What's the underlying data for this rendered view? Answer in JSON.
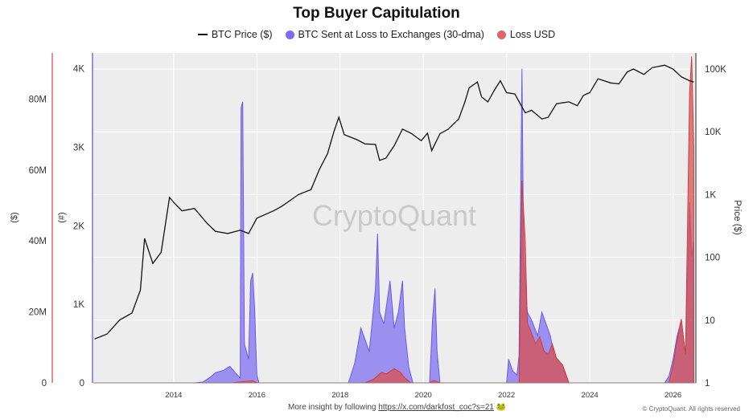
{
  "chart_data": {
    "type": "area",
    "title": "Top Buyer Capitulation",
    "legend": [
      {
        "label": "BTC Price ($)",
        "color": "#111111",
        "marker": "line"
      },
      {
        "label": "BTC Sent at Loss to Exchanges (30-dma)",
        "color": "#7b6cf0",
        "marker": "dot"
      },
      {
        "label": "Loss USD",
        "color": "#e06565",
        "marker": "dot"
      }
    ],
    "legend_position": "top-center",
    "grid": true,
    "axes": {
      "left_usd": {
        "label": "($)",
        "ticks": [
          "0",
          "20M",
          "40M",
          "60M",
          "80M"
        ],
        "tick_values": [
          0,
          20000000,
          40000000,
          60000000,
          80000000
        ],
        "range": [
          0,
          93000000
        ],
        "color": "#e06565"
      },
      "left_count": {
        "label": "(#)",
        "ticks": [
          "0",
          "1K",
          "2K",
          "3K",
          "4K"
        ],
        "tick_values": [
          0,
          1000,
          2000,
          3000,
          4000
        ],
        "range": [
          0,
          4200
        ],
        "color": "#7b6cf0"
      },
      "right_price": {
        "label": "Price ($)",
        "ticks": [
          "1",
          "10",
          "100",
          "1K",
          "10K",
          "100K"
        ],
        "tick_values": [
          1,
          10,
          100,
          1000,
          10000,
          100000
        ],
        "scale": "log",
        "range": [
          1,
          180000
        ]
      },
      "x": {
        "ticks": [
          "2014",
          "2016",
          "2018",
          "2020",
          "2022",
          "2024",
          "2026"
        ],
        "tick_values": [
          2014,
          2016,
          2018,
          2020,
          2022,
          2024,
          2026
        ],
        "range": [
          2012.05,
          2026.55
        ]
      }
    },
    "series": [
      {
        "name": "BTC Price ($)",
        "axis": "right_price",
        "points": [
          [
            2012.1,
            5
          ],
          [
            2012.4,
            6
          ],
          [
            2012.7,
            10
          ],
          [
            2013.0,
            13
          ],
          [
            2013.2,
            30
          ],
          [
            2013.3,
            200
          ],
          [
            2013.5,
            80
          ],
          [
            2013.7,
            120
          ],
          [
            2013.9,
            900
          ],
          [
            2014.0,
            750
          ],
          [
            2014.2,
            550
          ],
          [
            2014.5,
            600
          ],
          [
            2014.8,
            350
          ],
          [
            2015.0,
            260
          ],
          [
            2015.3,
            240
          ],
          [
            2015.6,
            270
          ],
          [
            2015.8,
            240
          ],
          [
            2016.0,
            420
          ],
          [
            2016.4,
            550
          ],
          [
            2016.6,
            650
          ],
          [
            2016.9,
            900
          ],
          [
            2017.0,
            1000
          ],
          [
            2017.3,
            1200
          ],
          [
            2017.5,
            2500
          ],
          [
            2017.7,
            4500
          ],
          [
            2017.85,
            10000
          ],
          [
            2017.97,
            17000
          ],
          [
            2018.1,
            9000
          ],
          [
            2018.4,
            7500
          ],
          [
            2018.6,
            6400
          ],
          [
            2018.85,
            6300
          ],
          [
            2018.95,
            3500
          ],
          [
            2019.1,
            3800
          ],
          [
            2019.3,
            6000
          ],
          [
            2019.5,
            11000
          ],
          [
            2019.7,
            9500
          ],
          [
            2019.95,
            7200
          ],
          [
            2020.1,
            9500
          ],
          [
            2020.2,
            5000
          ],
          [
            2020.4,
            9300
          ],
          [
            2020.6,
            11000
          ],
          [
            2020.85,
            16000
          ],
          [
            2021.0,
            30000
          ],
          [
            2021.1,
            50000
          ],
          [
            2021.3,
            62000
          ],
          [
            2021.4,
            36000
          ],
          [
            2021.55,
            30000
          ],
          [
            2021.7,
            45000
          ],
          [
            2021.85,
            65000
          ],
          [
            2022.0,
            42000
          ],
          [
            2022.2,
            40000
          ],
          [
            2022.45,
            20000
          ],
          [
            2022.6,
            22000
          ],
          [
            2022.85,
            16000
          ],
          [
            2023.0,
            17000
          ],
          [
            2023.2,
            28000
          ],
          [
            2023.5,
            30000
          ],
          [
            2023.7,
            26000
          ],
          [
            2023.85,
            38000
          ],
          [
            2024.0,
            42000
          ],
          [
            2024.2,
            70000
          ],
          [
            2024.5,
            60000
          ],
          [
            2024.7,
            58000
          ],
          [
            2024.9,
            90000
          ],
          [
            2025.05,
            100000
          ],
          [
            2025.3,
            82000
          ],
          [
            2025.5,
            105000
          ],
          [
            2025.8,
            115000
          ],
          [
            2026.0,
            100000
          ],
          [
            2026.2,
            75000
          ],
          [
            2026.4,
            65000
          ],
          [
            2026.5,
            62000
          ]
        ]
      },
      {
        "name": "BTC Sent at Loss to Exchanges (30-dma)",
        "axis": "left_count",
        "points": [
          [
            2012.1,
            0
          ],
          [
            2014.5,
            0
          ],
          [
            2014.7,
            10
          ],
          [
            2014.9,
            80
          ],
          [
            2015.0,
            130
          ],
          [
            2015.2,
            160
          ],
          [
            2015.35,
            210
          ],
          [
            2015.5,
            120
          ],
          [
            2015.6,
            60
          ],
          [
            2015.62,
            3500
          ],
          [
            2015.66,
            3580
          ],
          [
            2015.7,
            500
          ],
          [
            2015.8,
            300
          ],
          [
            2015.85,
            1300
          ],
          [
            2015.9,
            1400
          ],
          [
            2015.95,
            900
          ],
          [
            2016.0,
            100
          ],
          [
            2016.05,
            0
          ],
          [
            2018.2,
            0
          ],
          [
            2018.35,
            250
          ],
          [
            2018.5,
            700
          ],
          [
            2018.7,
            400
          ],
          [
            2018.85,
            1200
          ],
          [
            2018.9,
            1900
          ],
          [
            2018.95,
            900
          ],
          [
            2019.05,
            750
          ],
          [
            2019.2,
            1300
          ],
          [
            2019.3,
            700
          ],
          [
            2019.4,
            900
          ],
          [
            2019.5,
            1300
          ],
          [
            2019.55,
            700
          ],
          [
            2019.65,
            200
          ],
          [
            2019.75,
            0
          ],
          [
            2020.15,
            0
          ],
          [
            2020.22,
            800
          ],
          [
            2020.28,
            1200
          ],
          [
            2020.33,
            400
          ],
          [
            2020.4,
            0
          ],
          [
            2022.0,
            0
          ],
          [
            2022.05,
            300
          ],
          [
            2022.15,
            150
          ],
          [
            2022.25,
            100
          ],
          [
            2022.3,
            350
          ],
          [
            2022.37,
            4000
          ],
          [
            2022.41,
            1600
          ],
          [
            2022.5,
            900
          ],
          [
            2022.6,
            800
          ],
          [
            2022.75,
            600
          ],
          [
            2022.85,
            900
          ],
          [
            2022.95,
            750
          ],
          [
            2023.05,
            600
          ],
          [
            2023.15,
            350
          ],
          [
            2023.3,
            250
          ],
          [
            2023.5,
            0
          ],
          [
            2025.8,
            0
          ],
          [
            2025.9,
            80
          ],
          [
            2026.0,
            300
          ],
          [
            2026.1,
            600
          ],
          [
            2026.2,
            800
          ],
          [
            2026.3,
            350
          ],
          [
            2026.4,
            2300
          ],
          [
            2026.45,
            1600
          ],
          [
            2026.5,
            1800
          ]
        ]
      },
      {
        "name": "Loss USD",
        "axis": "left_usd",
        "points": [
          [
            2012.1,
            0
          ],
          [
            2015.4,
            0
          ],
          [
            2015.6,
            300000
          ],
          [
            2015.9,
            600000
          ],
          [
            2016.0,
            0
          ],
          [
            2018.6,
            0
          ],
          [
            2018.8,
            1000000
          ],
          [
            2019.0,
            3000000
          ],
          [
            2019.1,
            2500000
          ],
          [
            2019.3,
            4000000
          ],
          [
            2019.45,
            3000000
          ],
          [
            2019.55,
            1500000
          ],
          [
            2019.7,
            0
          ],
          [
            2020.15,
            0
          ],
          [
            2020.25,
            700000
          ],
          [
            2020.4,
            0
          ],
          [
            2022.3,
            0
          ],
          [
            2022.37,
            57000000
          ],
          [
            2022.45,
            40000000
          ],
          [
            2022.5,
            17000000
          ],
          [
            2022.6,
            14000000
          ],
          [
            2022.7,
            11000000
          ],
          [
            2022.8,
            13000000
          ],
          [
            2022.9,
            9000000
          ],
          [
            2023.0,
            8000000
          ],
          [
            2023.1,
            11000000
          ],
          [
            2023.2,
            7000000
          ],
          [
            2023.35,
            5000000
          ],
          [
            2023.5,
            0
          ],
          [
            2025.9,
            0
          ],
          [
            2026.0,
            5000000
          ],
          [
            2026.1,
            12000000
          ],
          [
            2026.2,
            18000000
          ],
          [
            2026.3,
            8000000
          ],
          [
            2026.4,
            82000000
          ],
          [
            2026.45,
            92000000
          ],
          [
            2026.5,
            66000000
          ]
        ]
      }
    ],
    "watermark": "CryptoQuant",
    "footer": {
      "prefix": "More insight by following",
      "link_text": "https://x.com/darkfost_coc?s=21",
      "credit": "© CryptoQuant. All rights reserved"
    }
  }
}
